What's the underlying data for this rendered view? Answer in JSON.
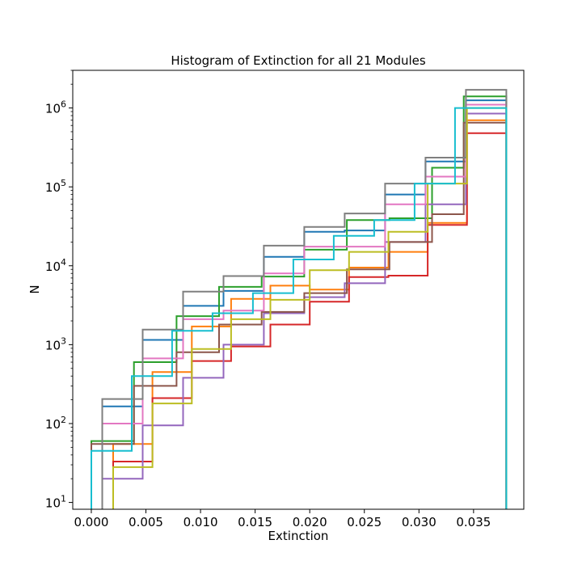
{
  "chart_data": {
    "type": "histogram",
    "title": "Histogram of Extinction for all 21 Modules",
    "xlabel": "Extinction",
    "ylabel": "N",
    "yscale": "log",
    "xlim": [
      -0.0017,
      0.0396
    ],
    "ylim": [
      8.2,
      3000000
    ],
    "grid": false,
    "x_ticks": [
      {
        "value": 0.0,
        "label": "0.000"
      },
      {
        "value": 0.005,
        "label": "0.005"
      },
      {
        "value": 0.01,
        "label": "0.010"
      },
      {
        "value": 0.015,
        "label": "0.015"
      },
      {
        "value": 0.02,
        "label": "0.020"
      },
      {
        "value": 0.025,
        "label": "0.025"
      },
      {
        "value": 0.03,
        "label": "0.030"
      },
      {
        "value": 0.035,
        "label": "0.035"
      }
    ],
    "y_ticks": [
      {
        "value": 10,
        "base": "10",
        "exp": "1"
      },
      {
        "value": 100,
        "base": "10",
        "exp": "2"
      },
      {
        "value": 1000,
        "base": "10",
        "exp": "3"
      },
      {
        "value": 10000,
        "base": "10",
        "exp": "4"
      },
      {
        "value": 100000,
        "base": "10",
        "exp": "5"
      },
      {
        "value": 1000000,
        "base": "10",
        "exp": "6"
      }
    ],
    "series": [
      {
        "color": "#1f77b4",
        "edges": [
          0.001,
          0.0047,
          0.0084,
          0.0121,
          0.0158,
          0.0195,
          0.0232,
          0.0269,
          0.0306,
          0.0343,
          0.038
        ],
        "counts": [
          165,
          1150,
          3100,
          4800,
          13000,
          27000,
          28000,
          80000,
          210000,
          1250000
        ]
      },
      {
        "color": "#ff7f0e",
        "edges": [
          0.002,
          0.0056,
          0.0092,
          0.0128,
          0.0164,
          0.02,
          0.0236,
          0.0272,
          0.0308,
          0.0344,
          0.038
        ],
        "counts": [
          55,
          450,
          1700,
          3800,
          5600,
          5000,
          9500,
          15000,
          35000,
          700000
        ]
      },
      {
        "color": "#2ca02c",
        "edges": [
          0.0,
          0.0039,
          0.0078,
          0.0117,
          0.0156,
          0.0195,
          0.0234,
          0.0273,
          0.0312,
          0.0341,
          0.038
        ],
        "counts": [
          60,
          600,
          2300,
          5400,
          7300,
          16000,
          38000,
          40000,
          175000,
          1400000
        ]
      },
      {
        "color": "#d62728",
        "edges": [
          0.002,
          0.0056,
          0.0092,
          0.0128,
          0.0164,
          0.02,
          0.0236,
          0.0272,
          0.0308,
          0.0344,
          0.038
        ],
        "counts": [
          33,
          210,
          620,
          950,
          1800,
          3500,
          7200,
          7500,
          33000,
          480000
        ]
      },
      {
        "color": "#9467bd",
        "edges": [
          0.001,
          0.0047,
          0.0084,
          0.0121,
          0.0158,
          0.0195,
          0.0232,
          0.0269,
          0.0306,
          0.0343,
          0.038
        ],
        "counts": [
          20,
          95,
          380,
          1000,
          2500,
          4000,
          6000,
          20000,
          60000,
          850000
        ]
      },
      {
        "color": "#8c564b",
        "edges": [
          0.0,
          0.0039,
          0.0078,
          0.0117,
          0.0156,
          0.0195,
          0.0234,
          0.0273,
          0.0312,
          0.0341,
          0.038
        ],
        "counts": [
          55,
          300,
          800,
          1800,
          2600,
          4500,
          9000,
          20000,
          45000,
          650000
        ]
      },
      {
        "color": "#e377c2",
        "edges": [
          0.001,
          0.0047,
          0.0084,
          0.0121,
          0.0158,
          0.0195,
          0.0232,
          0.0269,
          0.0306,
          0.0343,
          0.038
        ],
        "counts": [
          100,
          670,
          2100,
          2700,
          8000,
          17500,
          17500,
          60000,
          135000,
          1100000
        ]
      },
      {
        "color": "#7f7f7f",
        "edges": [
          0.001,
          0.0047,
          0.0084,
          0.0121,
          0.0158,
          0.0195,
          0.0232,
          0.0269,
          0.0306,
          0.0343,
          0.038
        ],
        "counts": [
          205,
          1550,
          4700,
          7400,
          18000,
          31000,
          46000,
          110000,
          235000,
          1700000
        ]
      },
      {
        "color": "#bcbd22",
        "edges": [
          0.002,
          0.0056,
          0.0092,
          0.0128,
          0.0164,
          0.02,
          0.0236,
          0.0272,
          0.0308,
          0.0344,
          0.038
        ],
        "counts": [
          28,
          180,
          880,
          2100,
          3700,
          8800,
          15000,
          27000,
          110000,
          1000000
        ]
      },
      {
        "color": "#17becf",
        "edges": [
          0.0,
          0.0037,
          0.0074,
          0.0111,
          0.0148,
          0.0185,
          0.0222,
          0.0259,
          0.0296,
          0.0333,
          0.038
        ],
        "counts": [
          45,
          400,
          1500,
          2500,
          4500,
          12000,
          24000,
          38000,
          110000,
          1000000
        ]
      }
    ]
  }
}
